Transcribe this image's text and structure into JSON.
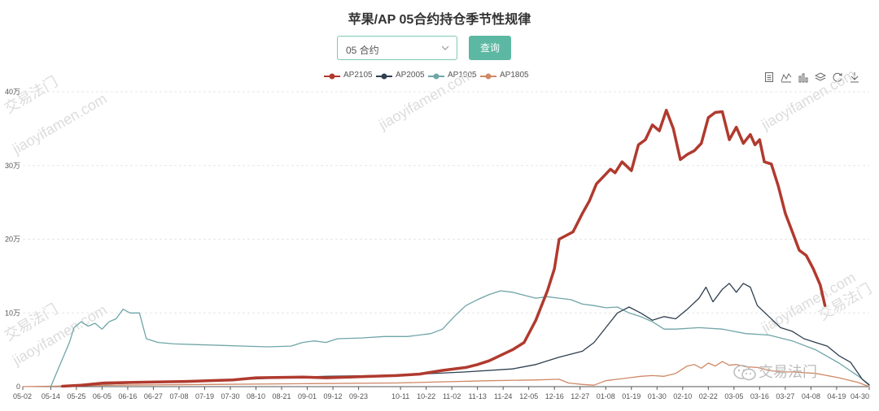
{
  "title": "苹果/AP 05合约持仓季节性规律",
  "controls": {
    "contract_select_value": "05 合约",
    "query_label": "查询"
  },
  "toolbox_icons": [
    "data-view-icon",
    "line-chart-icon",
    "bar-chart-icon",
    "stack-icon",
    "refresh-icon",
    "download-icon"
  ],
  "watermark": {
    "text": "交易法门",
    "url_text": "jiaoyifamen.com"
  },
  "chart_data": {
    "type": "line",
    "xlabel": "",
    "ylabel": "",
    "ylim": [
      0,
      400000
    ],
    "yticks": [
      0,
      100000,
      200000,
      300000,
      400000
    ],
    "ytick_labels": [
      "0",
      "10万",
      "20万",
      "30万",
      "40万"
    ],
    "grid": true,
    "legend": "top-center",
    "x_range_days": [
      0,
      363
    ],
    "x_ticks": [
      {
        "day": 0,
        "label": "05-02"
      },
      {
        "day": 12,
        "label": "05-14"
      },
      {
        "day": 23,
        "label": "05-25"
      },
      {
        "day": 34,
        "label": "06-05"
      },
      {
        "day": 45,
        "label": "06-16"
      },
      {
        "day": 56,
        "label": "06-27"
      },
      {
        "day": 67,
        "label": "07-08"
      },
      {
        "day": 78,
        "label": "07-19"
      },
      {
        "day": 89,
        "label": "07-30"
      },
      {
        "day": 100,
        "label": "08-10"
      },
      {
        "day": 111,
        "label": "08-21"
      },
      {
        "day": 122,
        "label": "09-01"
      },
      {
        "day": 133,
        "label": "09-12"
      },
      {
        "day": 144,
        "label": "09-23"
      },
      {
        "day": 162,
        "label": "10-11"
      },
      {
        "day": 173,
        "label": "10-22"
      },
      {
        "day": 184,
        "label": "11-02"
      },
      {
        "day": 195,
        "label": "11-13"
      },
      {
        "day": 206,
        "label": "11-24"
      },
      {
        "day": 217,
        "label": "12-05"
      },
      {
        "day": 228,
        "label": "12-16"
      },
      {
        "day": 239,
        "label": "12-27"
      },
      {
        "day": 250,
        "label": "01-08"
      },
      {
        "day": 261,
        "label": "01-19"
      },
      {
        "day": 272,
        "label": "01-30"
      },
      {
        "day": 283,
        "label": "02-10"
      },
      {
        "day": 294,
        "label": "02-22"
      },
      {
        "day": 305,
        "label": "03-05"
      },
      {
        "day": 316,
        "label": "03-16"
      },
      {
        "day": 327,
        "label": "03-27"
      },
      {
        "day": 338,
        "label": "04-08"
      },
      {
        "day": 349,
        "label": "04-19"
      },
      {
        "day": 363,
        "label": "04-30"
      }
    ],
    "series": [
      {
        "name": "AP2105",
        "color": "#b03a2e",
        "width": 3.5,
        "points": [
          [
            17,
            500
          ],
          [
            25,
            2000
          ],
          [
            35,
            5000
          ],
          [
            50,
            6000
          ],
          [
            70,
            7000
          ],
          [
            90,
            9000
          ],
          [
            100,
            12000
          ],
          [
            120,
            13000
          ],
          [
            130,
            12000
          ],
          [
            140,
            13000
          ],
          [
            150,
            14000
          ],
          [
            160,
            15000
          ],
          [
            170,
            17000
          ],
          [
            180,
            22000
          ],
          [
            190,
            26000
          ],
          [
            195,
            30000
          ],
          [
            200,
            35000
          ],
          [
            210,
            50000
          ],
          [
            215,
            60000
          ],
          [
            220,
            90000
          ],
          [
            225,
            130000
          ],
          [
            228,
            160000
          ],
          [
            230,
            200000
          ],
          [
            233,
            205000
          ],
          [
            236,
            210000
          ],
          [
            240,
            235000
          ],
          [
            243,
            252000
          ],
          [
            246,
            275000
          ],
          [
            249,
            285000
          ],
          [
            252,
            295000
          ],
          [
            254,
            290000
          ],
          [
            257,
            305000
          ],
          [
            261,
            293000
          ],
          [
            264,
            328000
          ],
          [
            267,
            335000
          ],
          [
            270,
            355000
          ],
          [
            273,
            347000
          ],
          [
            276,
            375000
          ],
          [
            279,
            350000
          ],
          [
            282,
            308000
          ],
          [
            285,
            315000
          ],
          [
            288,
            320000
          ],
          [
            291,
            330000
          ],
          [
            294,
            365000
          ],
          [
            297,
            372000
          ],
          [
            300,
            373000
          ],
          [
            303,
            335000
          ],
          [
            306,
            352000
          ],
          [
            309,
            330000
          ],
          [
            312,
            342000
          ],
          [
            314,
            328000
          ],
          [
            316,
            335000
          ],
          [
            318,
            305000
          ],
          [
            321,
            302000
          ],
          [
            324,
            272000
          ],
          [
            327,
            235000
          ],
          [
            330,
            210000
          ],
          [
            333,
            185000
          ],
          [
            336,
            178000
          ],
          [
            339,
            160000
          ],
          [
            342,
            138000
          ],
          [
            344,
            110000
          ]
        ]
      },
      {
        "name": "AP2005",
        "color": "#2f3f4f",
        "width": 1.3,
        "points": [
          [
            17,
            500
          ],
          [
            30,
            3000
          ],
          [
            50,
            5000
          ],
          [
            70,
            7000
          ],
          [
            90,
            9000
          ],
          [
            110,
            12000
          ],
          [
            130,
            14000
          ],
          [
            150,
            15000
          ],
          [
            170,
            17000
          ],
          [
            190,
            20000
          ],
          [
            210,
            24000
          ],
          [
            220,
            30000
          ],
          [
            230,
            40000
          ],
          [
            240,
            48000
          ],
          [
            245,
            60000
          ],
          [
            250,
            80000
          ],
          [
            255,
            100000
          ],
          [
            260,
            108000
          ],
          [
            265,
            100000
          ],
          [
            270,
            90000
          ],
          [
            275,
            95000
          ],
          [
            280,
            92000
          ],
          [
            285,
            105000
          ],
          [
            290,
            120000
          ],
          [
            293,
            135000
          ],
          [
            296,
            115000
          ],
          [
            300,
            132000
          ],
          [
            303,
            140000
          ],
          [
            306,
            128000
          ],
          [
            309,
            140000
          ],
          [
            312,
            135000
          ],
          [
            315,
            110000
          ],
          [
            320,
            95000
          ],
          [
            325,
            80000
          ],
          [
            330,
            75000
          ],
          [
            335,
            65000
          ],
          [
            340,
            60000
          ],
          [
            345,
            55000
          ],
          [
            350,
            42000
          ],
          [
            355,
            33000
          ],
          [
            360,
            10000
          ],
          [
            363,
            2000
          ]
        ]
      },
      {
        "name": "AP1905",
        "color": "#6fa5a8",
        "width": 1.3,
        "points": [
          [
            12,
            0
          ],
          [
            16,
            30000
          ],
          [
            20,
            60000
          ],
          [
            22,
            80000
          ],
          [
            25,
            88000
          ],
          [
            28,
            82000
          ],
          [
            31,
            86000
          ],
          [
            34,
            78000
          ],
          [
            37,
            88000
          ],
          [
            40,
            92000
          ],
          [
            43,
            105000
          ],
          [
            46,
            100000
          ],
          [
            50,
            100000
          ],
          [
            53,
            65000
          ],
          [
            58,
            60000
          ],
          [
            65,
            58000
          ],
          [
            75,
            57000
          ],
          [
            85,
            56000
          ],
          [
            95,
            55000
          ],
          [
            105,
            54000
          ],
          [
            115,
            55000
          ],
          [
            120,
            60000
          ],
          [
            125,
            62000
          ],
          [
            130,
            60000
          ],
          [
            135,
            65000
          ],
          [
            145,
            66000
          ],
          [
            155,
            68000
          ],
          [
            165,
            68000
          ],
          [
            170,
            70000
          ],
          [
            175,
            72000
          ],
          [
            180,
            78000
          ],
          [
            185,
            95000
          ],
          [
            190,
            110000
          ],
          [
            195,
            118000
          ],
          [
            200,
            125000
          ],
          [
            205,
            130000
          ],
          [
            210,
            128000
          ],
          [
            215,
            124000
          ],
          [
            220,
            120000
          ],
          [
            225,
            122000
          ],
          [
            230,
            120000
          ],
          [
            235,
            118000
          ],
          [
            240,
            112000
          ],
          [
            245,
            110000
          ],
          [
            250,
            107000
          ],
          [
            255,
            108000
          ],
          [
            260,
            100000
          ],
          [
            265,
            95000
          ],
          [
            270,
            88000
          ],
          [
            275,
            78000
          ],
          [
            280,
            78000
          ],
          [
            290,
            80000
          ],
          [
            300,
            78000
          ],
          [
            310,
            72000
          ],
          [
            320,
            70000
          ],
          [
            330,
            62000
          ],
          [
            340,
            50000
          ],
          [
            350,
            32000
          ],
          [
            358,
            15000
          ],
          [
            363,
            3000
          ]
        ]
      },
      {
        "name": "AP1805",
        "color": "#d08866",
        "width": 1.3,
        "points": [
          [
            0,
            0
          ],
          [
            40,
            2000
          ],
          [
            80,
            3000
          ],
          [
            120,
            4000
          ],
          [
            160,
            5000
          ],
          [
            200,
            8000
          ],
          [
            220,
            9000
          ],
          [
            230,
            10000
          ],
          [
            234,
            5000
          ],
          [
            240,
            3000
          ],
          [
            245,
            2000
          ],
          [
            250,
            8000
          ],
          [
            255,
            10000
          ],
          [
            260,
            12000
          ],
          [
            265,
            14000
          ],
          [
            270,
            15000
          ],
          [
            275,
            14000
          ],
          [
            280,
            18000
          ],
          [
            285,
            28000
          ],
          [
            288,
            30000
          ],
          [
            291,
            25000
          ],
          [
            294,
            32000
          ],
          [
            297,
            28000
          ],
          [
            300,
            34000
          ],
          [
            303,
            29000
          ],
          [
            306,
            30000
          ],
          [
            310,
            27000
          ],
          [
            315,
            26000
          ],
          [
            320,
            22000
          ],
          [
            325,
            20000
          ],
          [
            330,
            20000
          ],
          [
            340,
            18000
          ],
          [
            350,
            12000
          ],
          [
            358,
            6000
          ],
          [
            363,
            0
          ]
        ]
      }
    ]
  }
}
